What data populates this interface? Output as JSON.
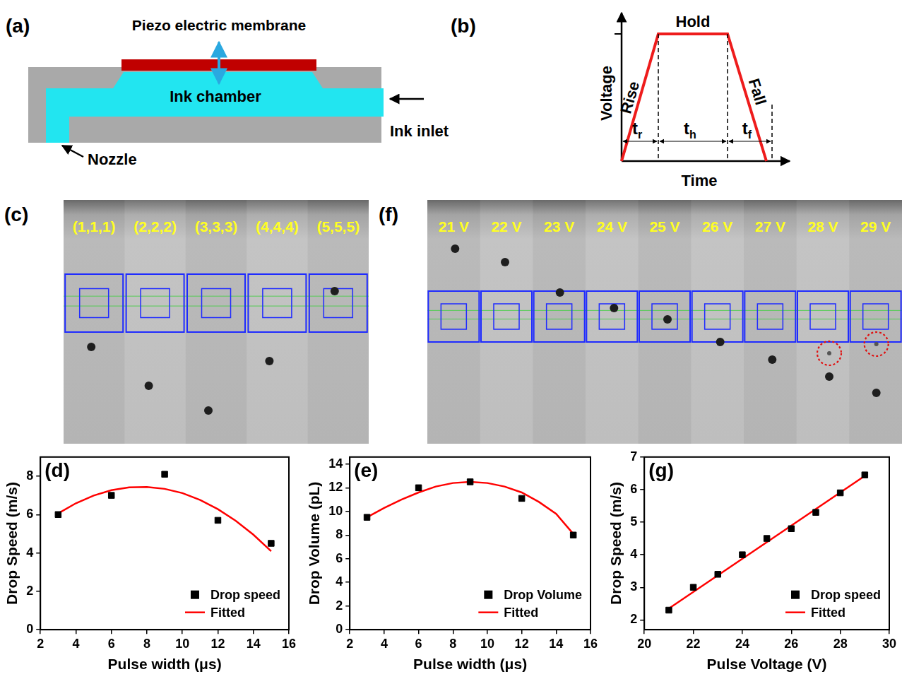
{
  "panels": {
    "a": {
      "label": "(a)",
      "membrane": "Piezo electric membrane",
      "chamber": "Ink chamber",
      "inlet": "Ink inlet",
      "nozzle": "Nozzle"
    },
    "b": {
      "label": "(b)",
      "y_label": "Voltage",
      "x_label": "Time",
      "rise": "Rise",
      "hold": "Hold",
      "fall": "Fall",
      "times": [
        {
          "base": "t",
          "sub": "r"
        },
        {
          "base": "t",
          "sub": "h"
        },
        {
          "base": "t",
          "sub": "f"
        }
      ]
    },
    "c": {
      "label": "(c)",
      "frames": [
        "(1,1,1)",
        "(2,2,2)",
        "(3,3,3)",
        "(4,4,4)",
        "(5,5,5)"
      ]
    },
    "f": {
      "label": "(f)",
      "frames": [
        "21 V",
        "22 V",
        "23 V",
        "24 V",
        "25 V",
        "26 V",
        "27 V",
        "28 V",
        "29 V"
      ],
      "satellite_frames": [
        "28 V",
        "29 V"
      ]
    }
  },
  "chart_data": [
    {
      "panel_label": "(d)",
      "type": "scatter",
      "x_label": "Pulse width (μs)",
      "y_label": "Drop Speed (m/s)",
      "xlim": [
        2,
        16
      ],
      "xticks": [
        2,
        4,
        6,
        8,
        10,
        12,
        14,
        16
      ],
      "ylim": [
        0,
        9
      ],
      "yticks": [
        0,
        2,
        4,
        6,
        8
      ],
      "grid": false,
      "legend": "lower right",
      "series": [
        {
          "name": "Drop speed",
          "type": "scatter",
          "marker": "square",
          "color": "#000000",
          "x": [
            3,
            6,
            9,
            12,
            15
          ],
          "values": [
            6.0,
            7.0,
            8.1,
            5.7,
            4.5
          ]
        },
        {
          "name": "Fitted",
          "type": "line",
          "line_style": "solid",
          "color": "#ff0000",
          "x": [
            3,
            4,
            5,
            6,
            7,
            8,
            9,
            10,
            11,
            12,
            13,
            14,
            15
          ],
          "values": [
            6.06,
            6.59,
            6.99,
            7.27,
            7.42,
            7.44,
            7.34,
            7.12,
            6.76,
            6.28,
            5.68,
            4.95,
            4.09
          ]
        }
      ]
    },
    {
      "panel_label": "(e)",
      "type": "scatter",
      "x_label": "Pulse width (μs)",
      "y_label": "Drop Volume (pL)",
      "xlim": [
        2,
        16
      ],
      "xticks": [
        2,
        4,
        6,
        8,
        10,
        12,
        14,
        16
      ],
      "ylim": [
        0,
        14.6
      ],
      "yticks": [
        0,
        2,
        4,
        6,
        8,
        10,
        12,
        14
      ],
      "grid": false,
      "legend": "lower right",
      "series": [
        {
          "name": "Drop Volume",
          "type": "scatter",
          "marker": "square",
          "color": "#000000",
          "x": [
            3,
            6,
            9,
            12,
            15
          ],
          "values": [
            9.5,
            12.0,
            12.5,
            11.1,
            8.0
          ]
        },
        {
          "name": "Fitted",
          "type": "line",
          "line_style": "solid",
          "color": "#ff0000",
          "x": [
            3,
            4,
            5,
            6,
            7,
            8,
            9,
            10,
            11,
            12,
            13,
            14,
            15
          ],
          "values": [
            9.5,
            10.3,
            11.0,
            11.6,
            12.1,
            12.4,
            12.5,
            12.4,
            12.1,
            11.6,
            10.8,
            9.8,
            8.1
          ]
        }
      ]
    },
    {
      "panel_label": "(g)",
      "type": "scatter",
      "x_label": "Pulse Voltage (V)",
      "y_label": "Drop Speed (m/s)",
      "xlim": [
        20,
        30
      ],
      "xticks": [
        20,
        22,
        24,
        26,
        28,
        30
      ],
      "ylim": [
        1.7,
        7
      ],
      "yticks": [
        2,
        3,
        4,
        5,
        6,
        7
      ],
      "grid": false,
      "legend": "lower right",
      "series": [
        {
          "name": "Drop speed",
          "type": "scatter",
          "marker": "square",
          "color": "#000000",
          "x": [
            21,
            22,
            23,
            24,
            25,
            26,
            27,
            28,
            29
          ],
          "values": [
            2.3,
            3.0,
            3.4,
            4.0,
            4.5,
            4.8,
            5.3,
            5.9,
            6.45
          ]
        },
        {
          "name": "Fitted",
          "type": "line",
          "line_style": "solid",
          "color": "#ff0000",
          "x": [
            21,
            29
          ],
          "values": [
            2.35,
            6.42
          ]
        }
      ]
    }
  ]
}
